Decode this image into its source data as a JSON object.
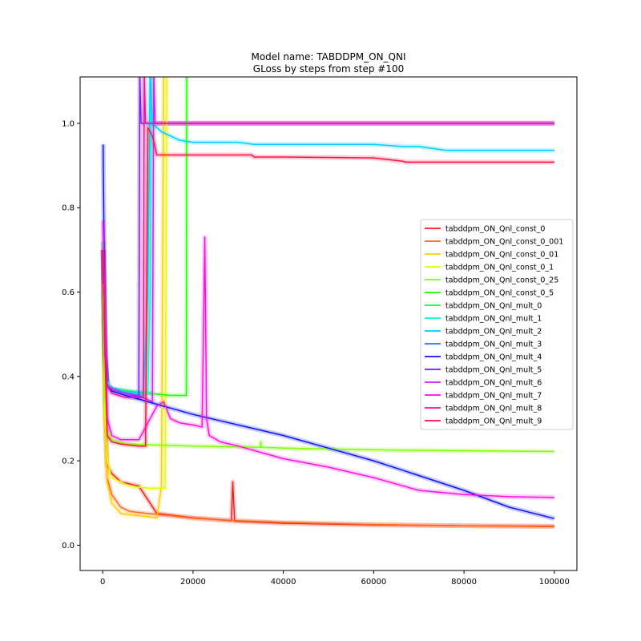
{
  "chart_data": {
    "type": "line",
    "title": "Model name: TABDDPM_ON_QNI",
    "subtitle": "GLoss by steps from step #100",
    "xlabel": "",
    "ylabel": "",
    "xlim": [
      -5000,
      105000
    ],
    "ylim": [
      -0.06,
      1.11
    ],
    "xticks": [
      0,
      20000,
      40000,
      60000,
      80000,
      100000
    ],
    "xtick_labels": [
      "0",
      "20000",
      "40000",
      "60000",
      "80000",
      "100000"
    ],
    "yticks": [
      0.0,
      0.2,
      0.4,
      0.6,
      0.8,
      1.0
    ],
    "ytick_labels": [
      "0.0",
      "0.2",
      "0.4",
      "0.6",
      "0.8",
      "1.0"
    ],
    "grid": false,
    "legend_position": "center-right",
    "series": [
      {
        "name": "tabddpm_ON_Qnl_const_0",
        "color": "#ff1a1a",
        "x": [
          100,
          500,
          1000,
          2000,
          4000,
          8000,
          12000,
          20000,
          28500,
          28800,
          29200,
          40000,
          60000,
          80000,
          100000
        ],
        "y": [
          0.72,
          0.35,
          0.19,
          0.17,
          0.15,
          0.14,
          0.075,
          0.065,
          0.058,
          0.15,
          0.057,
          0.052,
          0.048,
          0.046,
          0.045
        ]
      },
      {
        "name": "tabddpm_ON_Qnl_const_0_001",
        "color": "#ff6a1a",
        "x": [
          100,
          500,
          1000,
          2000,
          4000,
          6000,
          10000,
          15000,
          20000,
          30000,
          40000,
          60000,
          80000,
          100000
        ],
        "y": [
          0.6,
          0.3,
          0.16,
          0.12,
          0.09,
          0.08,
          0.075,
          0.07,
          0.064,
          0.058,
          0.054,
          0.049,
          0.046,
          0.044
        ]
      },
      {
        "name": "tabddpm_ON_Qnl_const_0_01",
        "color": "#ffcc00",
        "x": [
          100,
          500,
          1000,
          2000,
          4000,
          6000,
          8000,
          9500,
          12000,
          13000,
          13500
        ],
        "y": [
          0.62,
          0.32,
          0.15,
          0.1,
          0.075,
          0.072,
          0.07,
          0.068,
          0.065,
          0.14,
          1.12
        ]
      },
      {
        "name": "tabddpm_ON_Qnl_const_0_1",
        "color": "#ddff00",
        "x": [
          100,
          500,
          1000,
          2000,
          6000,
          10000,
          12000,
          13800,
          14200
        ],
        "y": [
          0.6,
          0.3,
          0.2,
          0.16,
          0.14,
          0.135,
          0.135,
          0.135,
          1.12
        ]
      },
      {
        "name": "tabddpm_ON_Qnl_const_0_25",
        "color": "#80ff00",
        "x": [
          100,
          500,
          1000,
          2000,
          5000,
          10000,
          20000,
          34900,
          35000,
          35100,
          40000,
          60000,
          80000,
          100000
        ],
        "y": [
          0.6,
          0.35,
          0.27,
          0.25,
          0.24,
          0.238,
          0.235,
          0.232,
          0.245,
          0.232,
          0.23,
          0.226,
          0.224,
          0.222
        ]
      },
      {
        "name": "tabddpm_ON_Qnl_const_0_5",
        "color": "#22ff00",
        "x": [
          100,
          500,
          1000,
          2000,
          6000,
          10000,
          15000,
          18500,
          18600,
          18700
        ],
        "y": [
          0.7,
          0.45,
          0.38,
          0.37,
          0.365,
          0.36,
          0.355,
          0.355,
          1.12,
          1.12
        ]
      },
      {
        "name": "tabddpm_ON_Qnl_mult_0",
        "color": "#00ff55",
        "x": [
          100,
          500,
          1000,
          2000,
          5000,
          8000,
          10000,
          11000
        ],
        "y": [
          0.7,
          0.45,
          0.38,
          0.37,
          0.365,
          0.36,
          0.36,
          0.36
        ]
      },
      {
        "name": "tabddpm_ON_Qnl_mult_1",
        "color": "#00ffcc",
        "x": [
          100,
          500,
          1000,
          2000,
          5000,
          8000,
          10000,
          10500,
          10700
        ],
        "y": [
          0.72,
          0.45,
          0.39,
          0.37,
          0.365,
          0.36,
          0.36,
          0.6,
          1.12
        ]
      },
      {
        "name": "tabddpm_ON_Qnl_mult_2",
        "color": "#00ccff",
        "x": [
          100,
          500,
          1000,
          2000,
          5000,
          9000,
          10000,
          10500,
          11000,
          12000,
          13000,
          15000,
          17000,
          20000,
          30000,
          33500,
          40000,
          60000,
          66500,
          70000,
          76000,
          80000,
          100000
        ],
        "y": [
          0.7,
          0.45,
          0.38,
          0.37,
          0.365,
          0.36,
          0.6,
          1.12,
          1.0,
          0.99,
          0.98,
          0.97,
          0.96,
          0.955,
          0.955,
          0.95,
          0.95,
          0.95,
          0.945,
          0.945,
          0.936,
          0.936,
          0.936
        ]
      },
      {
        "name": "tabddpm_ON_Qnl_mult_3",
        "color": "#2277ff",
        "x": [
          100,
          500,
          1000,
          2000,
          5000,
          8000,
          9000
        ],
        "y": [
          0.7,
          0.45,
          0.38,
          0.37,
          0.36,
          0.355,
          0.35
        ]
      },
      {
        "name": "tabddpm_ON_Qnl_mult_4",
        "color": "#0a14ff",
        "x": [
          100,
          500,
          1000,
          2000,
          5000,
          10000,
          20000,
          30000,
          40000,
          50000,
          60000,
          70000,
          80000,
          90000,
          100000
        ],
        "y": [
          0.95,
          0.5,
          0.38,
          0.365,
          0.355,
          0.34,
          0.31,
          0.285,
          0.26,
          0.23,
          0.2,
          0.165,
          0.13,
          0.09,
          0.063
        ]
      },
      {
        "name": "tabddpm_ON_Qnl_mult_5",
        "color": "#7a1aff",
        "x": [
          100,
          500,
          1000,
          2000,
          5000,
          8000,
          8200,
          8500,
          9000,
          20000,
          40000,
          60000,
          80000,
          100000
        ],
        "y": [
          0.7,
          0.45,
          0.38,
          0.37,
          0.36,
          0.35,
          1.12,
          1.0,
          1.0,
          1.0,
          1.0,
          1.0,
          1.0,
          1.0
        ]
      },
      {
        "name": "tabddpm_ON_Qnl_mult_6",
        "color": "#cc22ff",
        "x": [
          100,
          500,
          1000,
          2000,
          5000,
          9000,
          11000,
          11300,
          11600,
          20000,
          40000,
          60000,
          80000,
          100000
        ],
        "y": [
          0.7,
          0.45,
          0.38,
          0.37,
          0.36,
          0.35,
          0.34,
          1.12,
          1.0,
          1.0,
          1.0,
          1.0,
          1.0,
          1.0
        ]
      },
      {
        "name": "tabddpm_ON_Qnl_mult_7",
        "color": "#ff11dd",
        "x": [
          100,
          500,
          1000,
          2000,
          4000,
          8000,
          12000,
          13500,
          15000,
          17000,
          20000,
          22000,
          22600,
          23000,
          23600,
          26000,
          30000,
          40000,
          50000,
          60000,
          70000,
          80000,
          90000,
          100000
        ],
        "y": [
          0.77,
          0.55,
          0.3,
          0.26,
          0.25,
          0.25,
          0.33,
          0.34,
          0.3,
          0.29,
          0.285,
          0.28,
          0.73,
          0.3,
          0.26,
          0.245,
          0.235,
          0.205,
          0.185,
          0.16,
          0.13,
          0.12,
          0.115,
          0.113
        ]
      },
      {
        "name": "tabddpm_ON_Qnl_mult_8",
        "color": "#ee1199",
        "x": [
          100,
          500,
          1000,
          2000,
          5000,
          8000,
          9000,
          9200,
          9500,
          20000,
          40000,
          60000,
          80000,
          100000
        ],
        "y": [
          0.7,
          0.45,
          0.38,
          0.36,
          0.35,
          0.35,
          0.35,
          1.12,
          1.0,
          1.0,
          1.0,
          1.0,
          1.0,
          1.0
        ]
      },
      {
        "name": "tabddpm_ON_Qnl_mult_9",
        "color": "#ff1144",
        "x": [
          100,
          500,
          1000,
          2000,
          4000,
          8000,
          9500,
          10000,
          11000,
          12000,
          20000,
          33000,
          33500,
          40000,
          60000,
          66500,
          67000,
          80000,
          100000
        ],
        "y": [
          0.7,
          0.45,
          0.26,
          0.245,
          0.24,
          0.235,
          0.235,
          0.99,
          0.97,
          0.925,
          0.925,
          0.925,
          0.92,
          0.92,
          0.918,
          0.91,
          0.908,
          0.908,
          0.908
        ]
      }
    ]
  }
}
